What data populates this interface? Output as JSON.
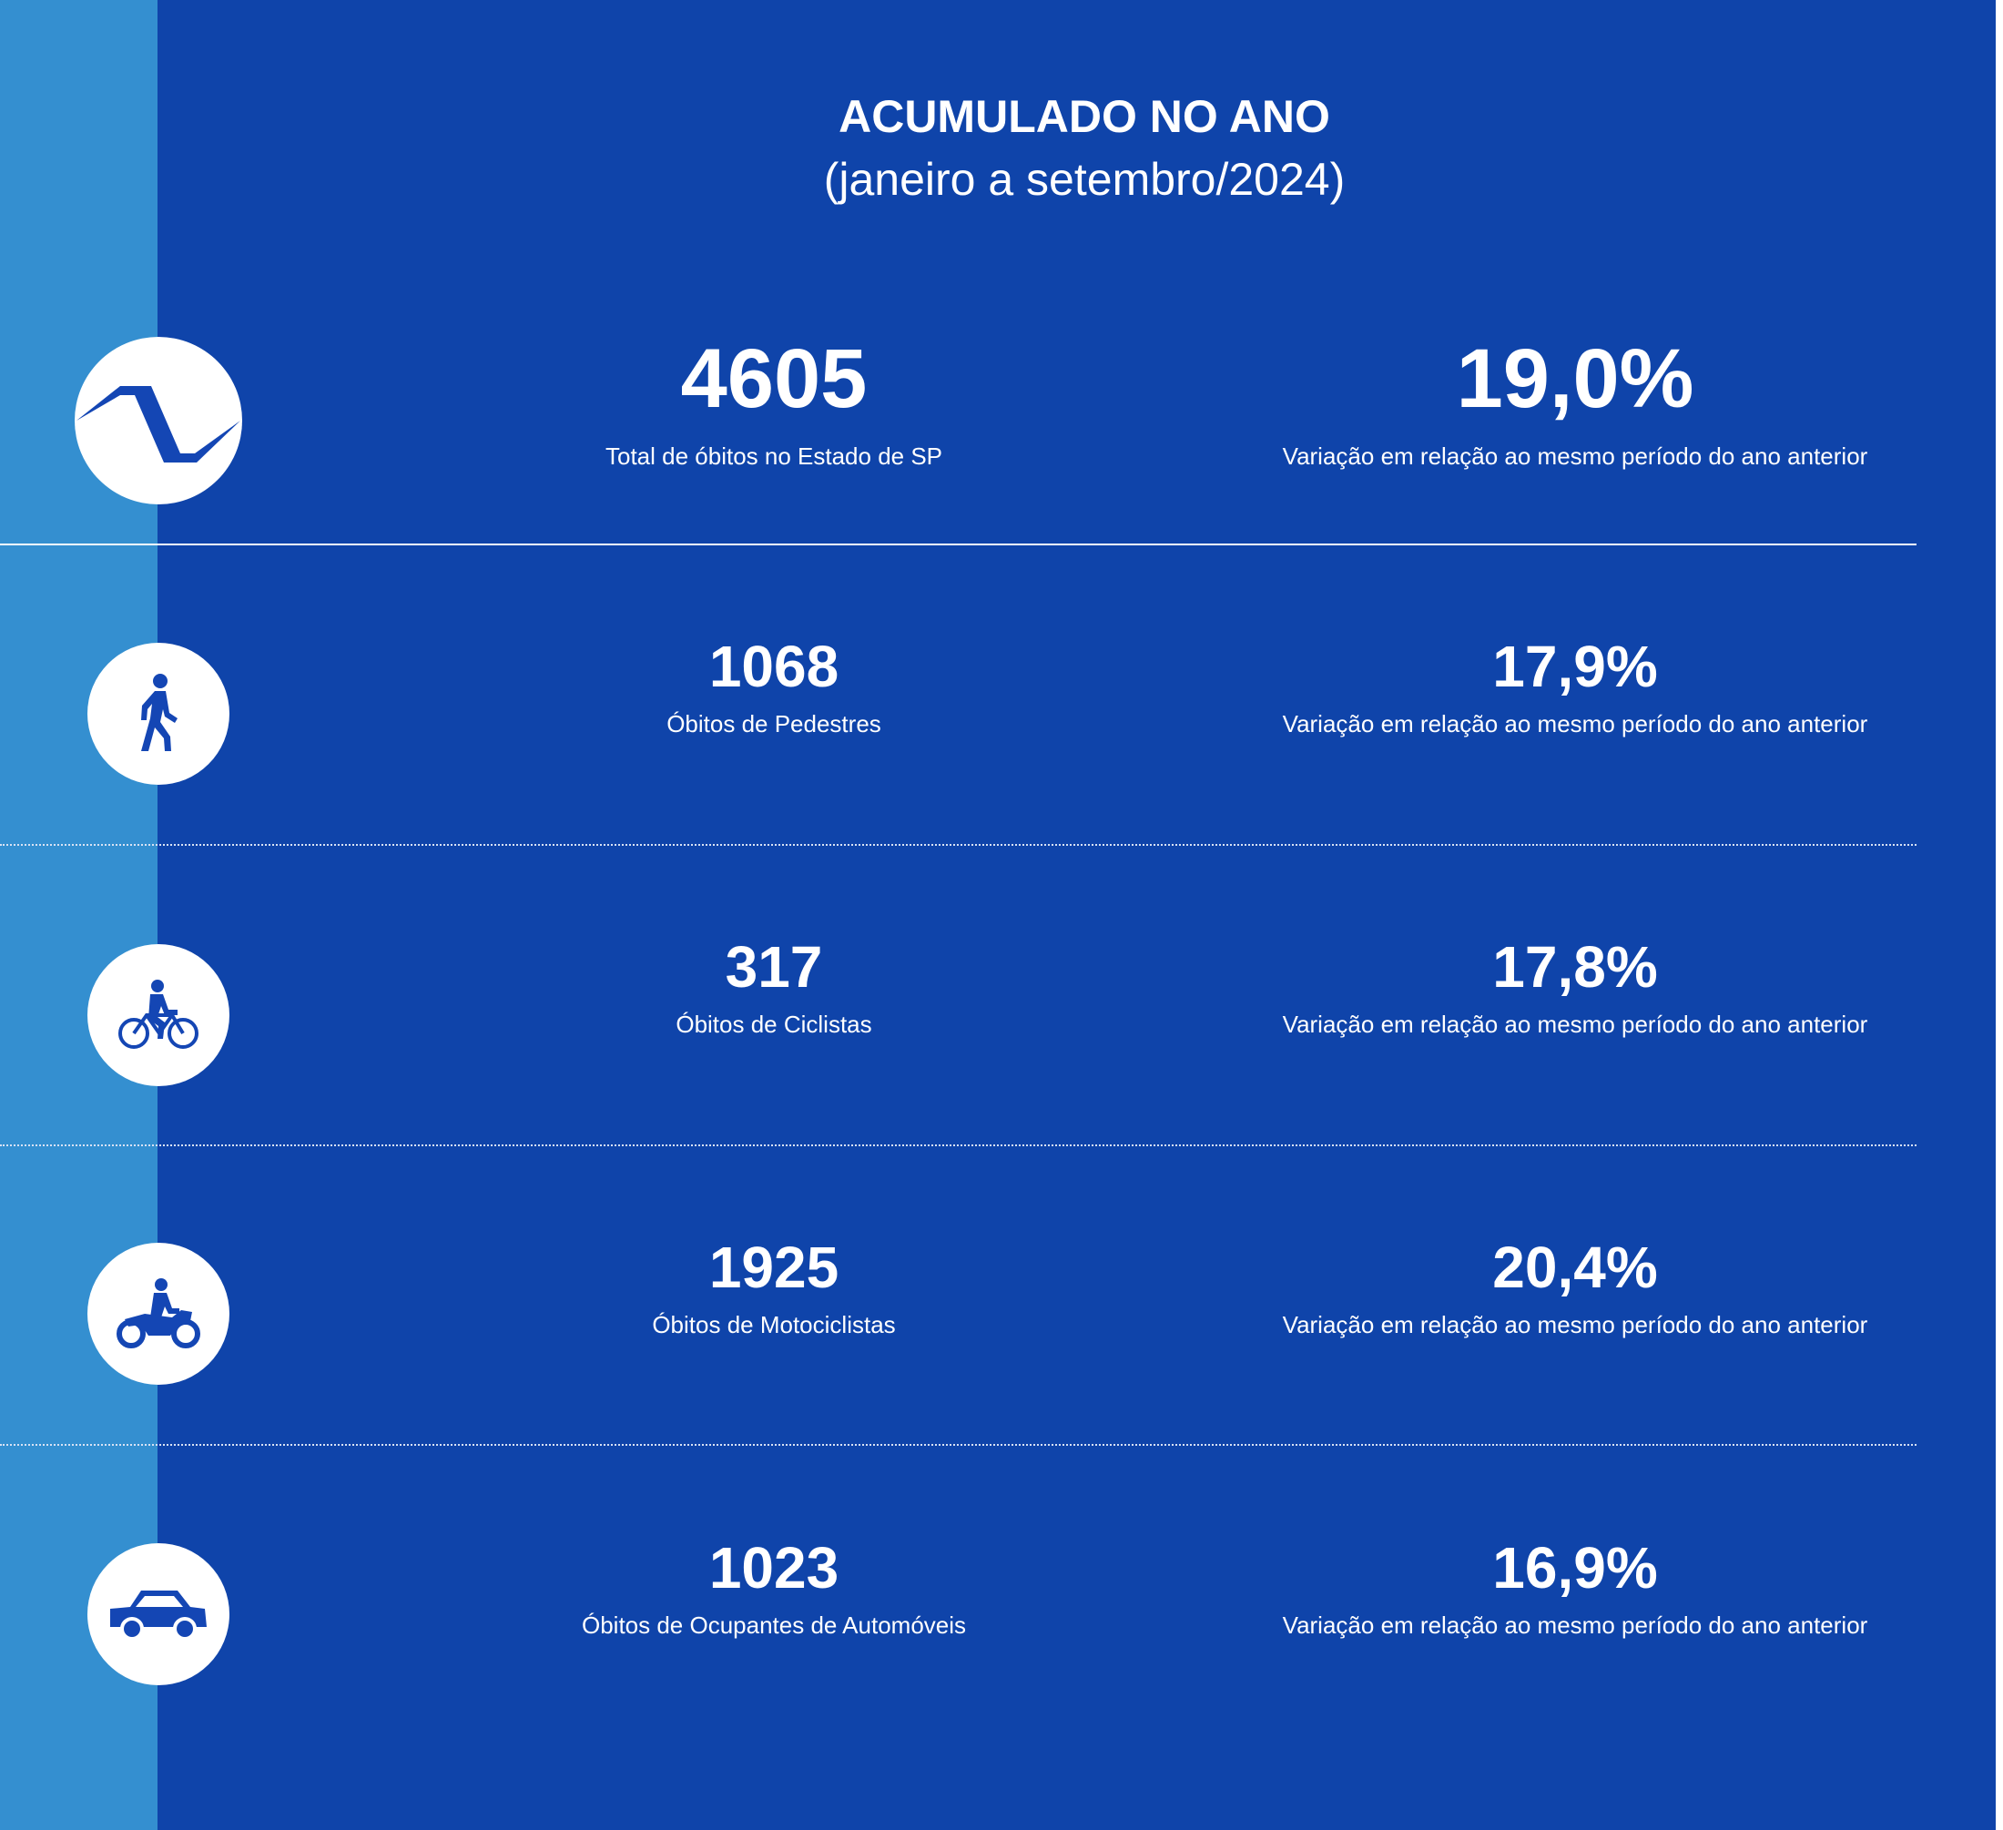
{
  "header": {
    "title": "ACUMULADO NO ANO",
    "subtitle": "(janeiro a setembro/2024)"
  },
  "colors": {
    "background": "#0f44aa",
    "side_stripe": "#348fd0",
    "text": "#ffffff",
    "icon_fill": "#1446b4"
  },
  "rows": [
    {
      "icon": "sao-paulo-state-flag-icon",
      "value": "4605",
      "value_label": "Total de óbitos no Estado de SP",
      "variation": "19,0%",
      "variation_label": "Variação em relação ao mesmo período do ano anterior"
    },
    {
      "icon": "pedestrian-icon",
      "value": "1068",
      "value_label": "Óbitos de Pedestres",
      "variation": "17,9%",
      "variation_label": "Variação em relação ao mesmo período do ano anterior"
    },
    {
      "icon": "cyclist-icon",
      "value": "317",
      "value_label": "Óbitos de Ciclistas",
      "variation": "17,8%",
      "variation_label": "Variação em relação ao mesmo período do ano anterior"
    },
    {
      "icon": "motorcyclist-icon",
      "value": "1925",
      "value_label": "Óbitos de Motociclistas",
      "variation": "20,4%",
      "variation_label": "Variação em relação ao mesmo período do ano anterior"
    },
    {
      "icon": "car-icon",
      "value": "1023",
      "value_label": "Óbitos de Ocupantes de Automóveis",
      "variation": "16,9%",
      "variation_label": "Variação em relação ao mesmo período do ano anterior"
    }
  ]
}
